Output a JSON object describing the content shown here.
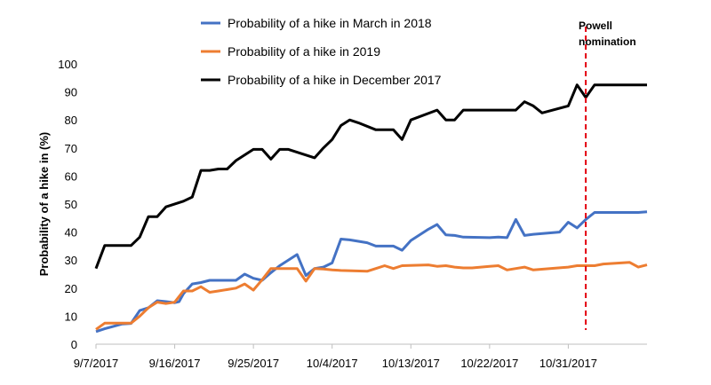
{
  "chart_data": {
    "type": "line",
    "title": "",
    "xlabel": "",
    "ylabel": "Probability of a hike in  (%)",
    "ylim": [
      0,
      100
    ],
    "yticks": [
      0,
      10,
      20,
      30,
      40,
      50,
      60,
      70,
      80,
      90,
      100
    ],
    "x_tick_labels": [
      "9/7/2017",
      "9/16/2017",
      "9/25/2017",
      "10/4/2017",
      "10/13/2017",
      "10/22/2017",
      "10/31/2017"
    ],
    "x_tick_days": [
      0,
      9,
      18,
      27,
      36,
      45,
      54
    ],
    "x_range_days": [
      0,
      63
    ],
    "grid": false,
    "legend_position": "top",
    "annotation": {
      "text_line1": "Powell",
      "text_line2": "nomination",
      "day": 56,
      "color": "#e3000f"
    },
    "series": [
      {
        "name": "Probability of a hike in March in 2018",
        "color": "#4472c4",
        "points": [
          [
            0,
            4.5
          ],
          [
            1,
            5.5
          ],
          [
            3,
            7.2
          ],
          [
            4,
            7.4
          ],
          [
            5,
            12
          ],
          [
            6,
            13
          ],
          [
            7,
            15.5
          ],
          [
            8,
            15.2
          ],
          [
            9,
            14.8
          ],
          [
            9.5,
            15.2
          ],
          [
            10,
            18
          ],
          [
            11,
            21.5
          ],
          [
            12,
            22
          ],
          [
            13,
            22.8
          ],
          [
            16,
            22.8
          ],
          [
            17,
            25
          ],
          [
            18,
            23.5
          ],
          [
            19,
            22.8
          ],
          [
            20,
            25.5
          ],
          [
            21,
            28
          ],
          [
            23,
            32
          ],
          [
            24,
            24.5
          ],
          [
            25,
            27
          ],
          [
            26,
            27.5
          ],
          [
            27,
            29
          ],
          [
            28,
            37.5
          ],
          [
            29,
            37.2
          ],
          [
            31,
            36.2
          ],
          [
            32,
            35
          ],
          [
            34,
            35
          ],
          [
            35,
            33.5
          ],
          [
            36,
            37
          ],
          [
            38,
            41
          ],
          [
            39,
            42.7
          ],
          [
            40,
            39
          ],
          [
            41,
            38.8
          ],
          [
            42,
            38.2
          ],
          [
            45,
            38
          ],
          [
            46,
            38.2
          ],
          [
            47,
            38
          ],
          [
            48,
            44.5
          ],
          [
            49,
            38.8
          ],
          [
            50,
            39.2
          ],
          [
            53,
            40
          ],
          [
            54,
            43.5
          ],
          [
            55,
            41.5
          ],
          [
            56,
            44.5
          ],
          [
            57,
            47
          ],
          [
            62,
            47
          ],
          [
            63,
            47.2
          ]
        ]
      },
      {
        "name": "Probability of a hike in 2019",
        "color": "#ed7d31",
        "points": [
          [
            0,
            5.3
          ],
          [
            1,
            7.5
          ],
          [
            3,
            7.5
          ],
          [
            4,
            7.5
          ],
          [
            5,
            10
          ],
          [
            6,
            13
          ],
          [
            7,
            15
          ],
          [
            8,
            14.5
          ],
          [
            9,
            15
          ],
          [
            10,
            19
          ],
          [
            11,
            19
          ],
          [
            12,
            20.5
          ],
          [
            13,
            18.5
          ],
          [
            14,
            19
          ],
          [
            16,
            20
          ],
          [
            17,
            21.5
          ],
          [
            18,
            19.3
          ],
          [
            19,
            23
          ],
          [
            20,
            27
          ],
          [
            22,
            27
          ],
          [
            23,
            27
          ],
          [
            24,
            22.5
          ],
          [
            25,
            27
          ],
          [
            26,
            26.8
          ],
          [
            27,
            26.5
          ],
          [
            28,
            26.3
          ],
          [
            31,
            26
          ],
          [
            32,
            27
          ],
          [
            33,
            28
          ],
          [
            34,
            27
          ],
          [
            35,
            28
          ],
          [
            38,
            28.3
          ],
          [
            39,
            27.8
          ],
          [
            40,
            28
          ],
          [
            41,
            27.5
          ],
          [
            42,
            27.2
          ],
          [
            43,
            27.2
          ],
          [
            45,
            27.8
          ],
          [
            46,
            28
          ],
          [
            47,
            26.5
          ],
          [
            48,
            27
          ],
          [
            49,
            27.5
          ],
          [
            50,
            26.5
          ],
          [
            54,
            27.5
          ],
          [
            55,
            28
          ],
          [
            57,
            28
          ],
          [
            58,
            28.6
          ],
          [
            61,
            29.2
          ],
          [
            62,
            27.5
          ],
          [
            63,
            28.3
          ]
        ]
      },
      {
        "name": "Probability of a hike in December 2017",
        "color": "#000000",
        "points": [
          [
            0,
            27
          ],
          [
            1,
            35.2
          ],
          [
            2,
            35.2
          ],
          [
            4,
            35.2
          ],
          [
            5,
            38.2
          ],
          [
            6,
            45.5
          ],
          [
            7,
            45.5
          ],
          [
            8,
            49
          ],
          [
            10,
            51
          ],
          [
            11,
            52.5
          ],
          [
            12,
            62
          ],
          [
            13,
            62
          ],
          [
            14,
            62.5
          ],
          [
            15,
            62.5
          ],
          [
            16,
            65.5
          ],
          [
            18,
            69.5
          ],
          [
            19,
            69.5
          ],
          [
            20,
            66
          ],
          [
            21,
            69.5
          ],
          [
            22,
            69.5
          ],
          [
            25,
            66.5
          ],
          [
            26,
            70
          ],
          [
            27,
            73
          ],
          [
            28,
            78
          ],
          [
            29,
            80
          ],
          [
            30,
            79
          ],
          [
            32,
            76.5
          ],
          [
            34,
            76.5
          ],
          [
            35,
            73
          ],
          [
            36,
            80
          ],
          [
            39,
            83.5
          ],
          [
            40,
            80
          ],
          [
            41,
            80
          ],
          [
            42,
            83.5
          ],
          [
            48,
            83.5
          ],
          [
            49,
            86.5
          ],
          [
            50,
            85
          ],
          [
            51,
            82.5
          ],
          [
            54,
            85
          ],
          [
            55,
            92.5
          ],
          [
            56,
            88
          ],
          [
            57,
            92.5
          ],
          [
            63,
            92.5
          ]
        ]
      }
    ]
  }
}
